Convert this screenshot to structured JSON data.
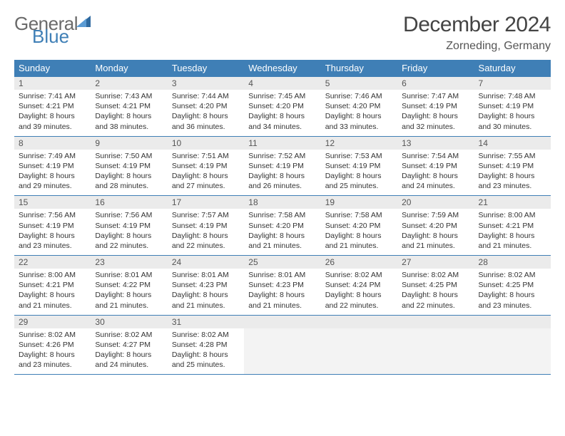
{
  "brand": {
    "name_part1": "General",
    "name_part2": "Blue"
  },
  "title": "December 2024",
  "location": "Zorneding, Germany",
  "colors": {
    "header_bg": "#3f7fb6",
    "header_text": "#ffffff",
    "daynum_bg": "#ebebeb",
    "border": "#3f7fb6",
    "empty_bg": "#f3f3f3",
    "text": "#333333",
    "grey_text": "#6a6a6a"
  },
  "typography": {
    "title_fontsize": 30,
    "location_fontsize": 16,
    "dow_fontsize": 13,
    "cell_fontsize": 10.5
  },
  "dow": [
    "Sunday",
    "Monday",
    "Tuesday",
    "Wednesday",
    "Thursday",
    "Friday",
    "Saturday"
  ],
  "weeks": [
    [
      {
        "n": "1",
        "sr": "7:41 AM",
        "ss": "4:21 PM",
        "dl": "8 hours and 39 minutes."
      },
      {
        "n": "2",
        "sr": "7:43 AM",
        "ss": "4:21 PM",
        "dl": "8 hours and 38 minutes."
      },
      {
        "n": "3",
        "sr": "7:44 AM",
        "ss": "4:20 PM",
        "dl": "8 hours and 36 minutes."
      },
      {
        "n": "4",
        "sr": "7:45 AM",
        "ss": "4:20 PM",
        "dl": "8 hours and 34 minutes."
      },
      {
        "n": "5",
        "sr": "7:46 AM",
        "ss": "4:20 PM",
        "dl": "8 hours and 33 minutes."
      },
      {
        "n": "6",
        "sr": "7:47 AM",
        "ss": "4:19 PM",
        "dl": "8 hours and 32 minutes."
      },
      {
        "n": "7",
        "sr": "7:48 AM",
        "ss": "4:19 PM",
        "dl": "8 hours and 30 minutes."
      }
    ],
    [
      {
        "n": "8",
        "sr": "7:49 AM",
        "ss": "4:19 PM",
        "dl": "8 hours and 29 minutes."
      },
      {
        "n": "9",
        "sr": "7:50 AM",
        "ss": "4:19 PM",
        "dl": "8 hours and 28 minutes."
      },
      {
        "n": "10",
        "sr": "7:51 AM",
        "ss": "4:19 PM",
        "dl": "8 hours and 27 minutes."
      },
      {
        "n": "11",
        "sr": "7:52 AM",
        "ss": "4:19 PM",
        "dl": "8 hours and 26 minutes."
      },
      {
        "n": "12",
        "sr": "7:53 AM",
        "ss": "4:19 PM",
        "dl": "8 hours and 25 minutes."
      },
      {
        "n": "13",
        "sr": "7:54 AM",
        "ss": "4:19 PM",
        "dl": "8 hours and 24 minutes."
      },
      {
        "n": "14",
        "sr": "7:55 AM",
        "ss": "4:19 PM",
        "dl": "8 hours and 23 minutes."
      }
    ],
    [
      {
        "n": "15",
        "sr": "7:56 AM",
        "ss": "4:19 PM",
        "dl": "8 hours and 23 minutes."
      },
      {
        "n": "16",
        "sr": "7:56 AM",
        "ss": "4:19 PM",
        "dl": "8 hours and 22 minutes."
      },
      {
        "n": "17",
        "sr": "7:57 AM",
        "ss": "4:19 PM",
        "dl": "8 hours and 22 minutes."
      },
      {
        "n": "18",
        "sr": "7:58 AM",
        "ss": "4:20 PM",
        "dl": "8 hours and 21 minutes."
      },
      {
        "n": "19",
        "sr": "7:58 AM",
        "ss": "4:20 PM",
        "dl": "8 hours and 21 minutes."
      },
      {
        "n": "20",
        "sr": "7:59 AM",
        "ss": "4:20 PM",
        "dl": "8 hours and 21 minutes."
      },
      {
        "n": "21",
        "sr": "8:00 AM",
        "ss": "4:21 PM",
        "dl": "8 hours and 21 minutes."
      }
    ],
    [
      {
        "n": "22",
        "sr": "8:00 AM",
        "ss": "4:21 PM",
        "dl": "8 hours and 21 minutes."
      },
      {
        "n": "23",
        "sr": "8:01 AM",
        "ss": "4:22 PM",
        "dl": "8 hours and 21 minutes."
      },
      {
        "n": "24",
        "sr": "8:01 AM",
        "ss": "4:23 PM",
        "dl": "8 hours and 21 minutes."
      },
      {
        "n": "25",
        "sr": "8:01 AM",
        "ss": "4:23 PM",
        "dl": "8 hours and 21 minutes."
      },
      {
        "n": "26",
        "sr": "8:02 AM",
        "ss": "4:24 PM",
        "dl": "8 hours and 22 minutes."
      },
      {
        "n": "27",
        "sr": "8:02 AM",
        "ss": "4:25 PM",
        "dl": "8 hours and 22 minutes."
      },
      {
        "n": "28",
        "sr": "8:02 AM",
        "ss": "4:25 PM",
        "dl": "8 hours and 23 minutes."
      }
    ],
    [
      {
        "n": "29",
        "sr": "8:02 AM",
        "ss": "4:26 PM",
        "dl": "8 hours and 23 minutes."
      },
      {
        "n": "30",
        "sr": "8:02 AM",
        "ss": "4:27 PM",
        "dl": "8 hours and 24 minutes."
      },
      {
        "n": "31",
        "sr": "8:02 AM",
        "ss": "4:28 PM",
        "dl": "8 hours and 25 minutes."
      },
      null,
      null,
      null,
      null
    ]
  ],
  "labels": {
    "sunrise": "Sunrise: ",
    "sunset": "Sunset: ",
    "daylight": "Daylight: "
  }
}
